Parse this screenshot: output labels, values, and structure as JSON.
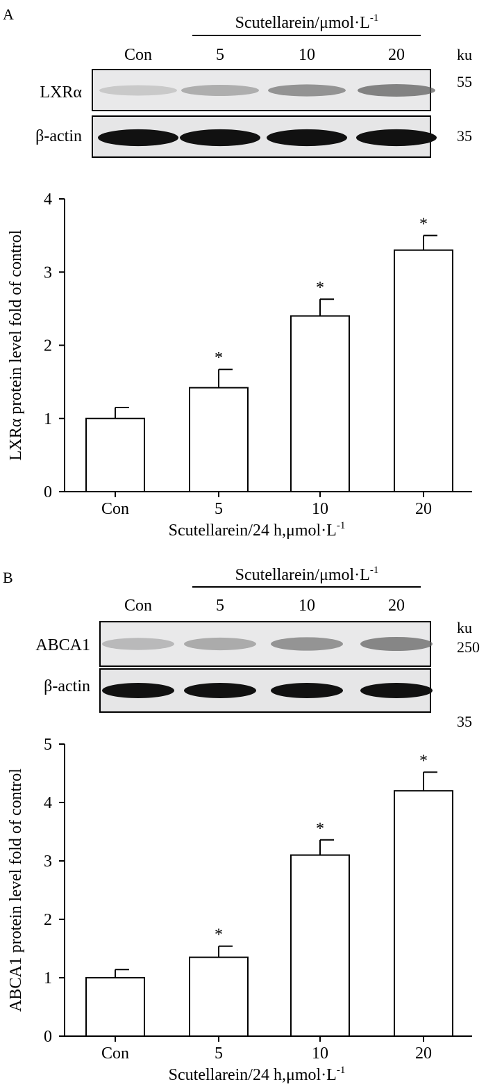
{
  "panels": [
    {
      "letter": "A",
      "blot": {
        "treatment_label": "Scutellarein/μmol·L",
        "treatment_sup": "-1",
        "lanes": [
          "Con",
          "5",
          "10",
          "20"
        ],
        "unit": "ku",
        "rows": [
          {
            "name": "LXRα",
            "mw": "55",
            "intensities": [
              0.22,
              0.4,
              0.58,
              0.7
            ],
            "band_color": "#555555"
          },
          {
            "name": "β-actin",
            "mw": "35",
            "intensities": [
              1.0,
              1.0,
              1.0,
              1.0
            ],
            "band_color": "#111111"
          }
        ]
      }
    },
    {
      "letter": "B",
      "blot": {
        "treatment_label": "Scutellarein/μmol·L",
        "treatment_sup": "-1",
        "lanes": [
          "Con",
          "5",
          "10",
          "20"
        ],
        "unit": "ku",
        "rows": [
          {
            "name": "ABCA1",
            "mw": "250",
            "intensities": [
              0.35,
              0.45,
              0.62,
              0.72
            ],
            "band_color": "#606060"
          },
          {
            "name": "β-actin",
            "mw": "35",
            "intensities": [
              1.0,
              1.0,
              1.0,
              1.0
            ],
            "band_color": "#111111"
          }
        ]
      }
    }
  ],
  "chart_data": [
    {
      "type": "bar",
      "categories": [
        "Con",
        "5",
        "10",
        "20"
      ],
      "values": [
        1.0,
        1.42,
        2.4,
        3.3
      ],
      "errors": [
        0.15,
        0.25,
        0.23,
        0.2
      ],
      "significance": [
        "",
        "*",
        "*",
        "*"
      ],
      "xlabel": "Scutellarein/24 h,μmol·L",
      "xlabel_sup": "-1",
      "ylabel": "LXRα protein level fold of control",
      "ylim": [
        0,
        4
      ],
      "yticks": [
        "0",
        "1",
        "2",
        "3",
        "4"
      ]
    },
    {
      "type": "bar",
      "categories": [
        "Con",
        "5",
        "10",
        "20"
      ],
      "values": [
        1.0,
        1.35,
        3.1,
        4.2
      ],
      "errors": [
        0.14,
        0.19,
        0.26,
        0.32
      ],
      "significance": [
        "",
        "*",
        "*",
        "*"
      ],
      "xlabel": "Scutellarein/24 h,μmol·L",
      "xlabel_sup": "-1",
      "ylabel": "ABCA1 protein level fold of control",
      "ylim": [
        0,
        5
      ],
      "yticks": [
        "0",
        "1",
        "2",
        "3",
        "4",
        "5"
      ]
    }
  ]
}
